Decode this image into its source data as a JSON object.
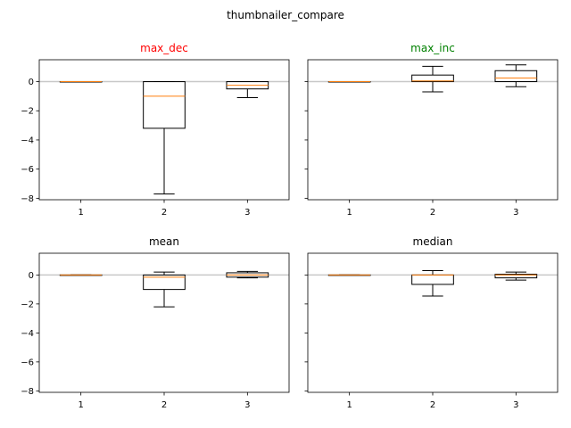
{
  "chart_data": {
    "type": "box",
    "title": "thumbnailer_compare",
    "shared_ylim": [
      -8.1,
      1.5
    ],
    "yticks": [
      0,
      -2,
      -4,
      -6,
      -8
    ],
    "categories": [
      "1",
      "2",
      "3"
    ],
    "reference_line": 0,
    "colors": {
      "median": "#ff7f0e",
      "box": "#000000",
      "refline": "#c8c8c8"
    },
    "subplots": [
      {
        "title": "max_dec",
        "title_color": "#ff0000",
        "boxes": [
          {
            "category": "1",
            "whislo": 0,
            "q1": 0,
            "med": 0,
            "q3": 0,
            "whishi": 0
          },
          {
            "category": "2",
            "whislo": -7.7,
            "q1": -3.2,
            "med": -1.0,
            "q3": 0.0,
            "whishi": 0.0
          },
          {
            "category": "3",
            "whislo": -1.1,
            "q1": -0.5,
            "med": -0.25,
            "q3": 0.0,
            "whishi": 0.0
          }
        ]
      },
      {
        "title": "max_inc",
        "title_color": "#008000",
        "boxes": [
          {
            "category": "1",
            "whislo": 0,
            "q1": 0,
            "med": 0,
            "q3": 0,
            "whishi": 0
          },
          {
            "category": "2",
            "whislo": -0.7,
            "q1": 0.0,
            "med": 0.05,
            "q3": 0.45,
            "whishi": 1.05
          },
          {
            "category": "3",
            "whislo": -0.35,
            "q1": 0.0,
            "med": 0.25,
            "q3": 0.75,
            "whishi": 1.15
          }
        ]
      },
      {
        "title": "mean",
        "title_color": "#000000",
        "boxes": [
          {
            "category": "1",
            "whislo": 0,
            "q1": 0,
            "med": 0,
            "q3": 0,
            "whishi": 0
          },
          {
            "category": "2",
            "whislo": -2.2,
            "q1": -1.0,
            "med": -0.15,
            "q3": 0.0,
            "whishi": 0.2
          },
          {
            "category": "3",
            "whislo": -0.2,
            "q1": -0.15,
            "med": 0.0,
            "q3": 0.15,
            "whishi": 0.25
          }
        ]
      },
      {
        "title": "median",
        "title_color": "#000000",
        "boxes": [
          {
            "category": "1",
            "whislo": 0,
            "q1": 0,
            "med": 0,
            "q3": 0,
            "whishi": 0
          },
          {
            "category": "2",
            "whislo": -1.45,
            "q1": -0.65,
            "med": 0.0,
            "q3": 0.0,
            "whishi": 0.3
          },
          {
            "category": "3",
            "whislo": -0.35,
            "q1": -0.2,
            "med": 0.0,
            "q3": 0.05,
            "whishi": 0.2
          }
        ]
      }
    ]
  }
}
